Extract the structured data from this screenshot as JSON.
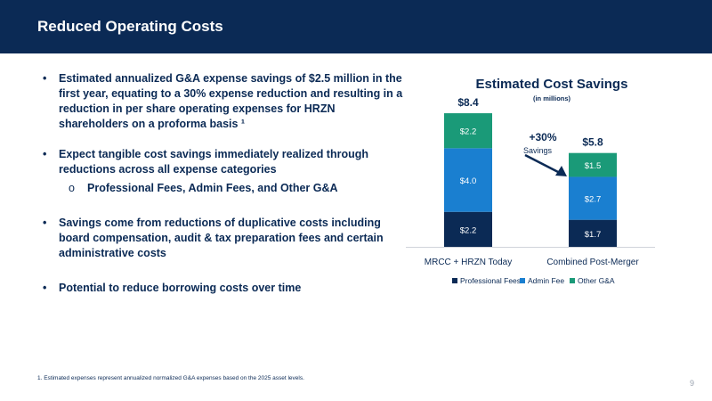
{
  "header": {
    "title": "Reduced Operating Costs"
  },
  "bullets": [
    "Estimated annualized G&A expense savings of $2.5 million in the first year, equating to a 30% expense reduction and resulting in a reduction in per share operating expenses for HRZN shareholders on a proforma basis ¹",
    "Expect tangible cost savings immediately realized through reductions across all expense categories",
    "Savings come from reductions of duplicative costs including board compensation, audit & tax preparation fees and certain administrative costs",
    "Potential to reduce borrowing costs over time"
  ],
  "sub_bullet": {
    "marker": "o",
    "text": "Professional Fees, Admin Fees, and Other G&A"
  },
  "bullet_marker": "•",
  "footnote": "1. Estimated expenses represent annualized normalized G&A expenses based on the 2025 asset levels.",
  "page_number": "9",
  "colors": {
    "navy": "#0b2a55",
    "blue": "#1a7fd0",
    "teal": "#1a9a78"
  },
  "chart_data": {
    "type": "bar",
    "stacked": true,
    "title": "Estimated Cost Savings",
    "subtitle": "(in millions)",
    "categories": [
      "MRCC + HRZN Today",
      "Combined Post-Merger"
    ],
    "series": [
      {
        "name": "Professional Fees",
        "values": [
          2.2,
          1.7
        ],
        "labels": [
          "$2.2",
          "$1.7"
        ],
        "color": "#0b2a55"
      },
      {
        "name": "Admin Fee",
        "values": [
          4.0,
          2.7
        ],
        "labels": [
          "$4.0",
          "$2.7"
        ],
        "color": "#1a7fd0"
      },
      {
        "name": "Other G&A",
        "values": [
          2.2,
          1.5
        ],
        "labels": [
          "$2.2",
          "$1.5"
        ],
        "color": "#1a9a78"
      }
    ],
    "totals": [
      "$8.4",
      "$5.8"
    ],
    "annotation": {
      "value": "+30%",
      "label": "Savings"
    },
    "ylim": [
      0,
      9.3
    ],
    "legend": "bottom"
  }
}
